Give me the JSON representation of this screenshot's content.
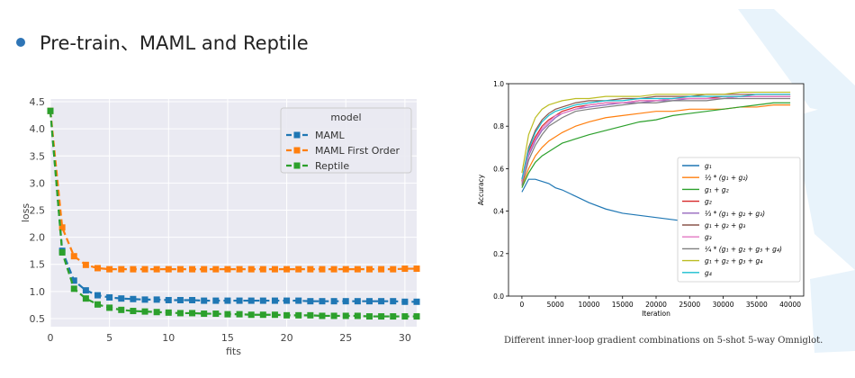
{
  "slide": {
    "bullet_text": "Pre-train、MAML and Reptile",
    "right_caption": "Different inner-loop gradient combinations on 5-shot 5-way Omniglot.",
    "colors": {
      "bullet": "#2e75b6",
      "decor": "#e8f3fb"
    }
  },
  "chart_data": [
    {
      "type": "line",
      "title": "",
      "xlabel": "fits",
      "ylabel": "loss",
      "xlim": [
        0,
        31
      ],
      "ylim": [
        0.35,
        4.55
      ],
      "xticks": [
        0,
        5,
        10,
        15,
        20,
        25,
        30
      ],
      "yticks": [
        0.5,
        1.0,
        1.5,
        2.0,
        2.5,
        3.0,
        3.5,
        4.0,
        4.5
      ],
      "grid": true,
      "legend_title": "model",
      "legend_position": "top-right",
      "x": [
        0,
        1,
        2,
        3,
        4,
        5,
        6,
        7,
        8,
        9,
        10,
        11,
        12,
        13,
        14,
        15,
        16,
        17,
        18,
        19,
        20,
        21,
        22,
        23,
        24,
        25,
        26,
        27,
        28,
        29,
        30,
        31
      ],
      "series": [
        {
          "name": "MAML",
          "color": "#1f77b4",
          "values": [
            4.33,
            1.75,
            1.2,
            1.02,
            0.93,
            0.89,
            0.87,
            0.86,
            0.85,
            0.85,
            0.84,
            0.84,
            0.84,
            0.83,
            0.83,
            0.83,
            0.83,
            0.83,
            0.83,
            0.83,
            0.83,
            0.83,
            0.82,
            0.82,
            0.82,
            0.82,
            0.82,
            0.82,
            0.82,
            0.82,
            0.81,
            0.81
          ]
        },
        {
          "name": "MAML First Order",
          "color": "#ff7f0e",
          "values": [
            4.33,
            2.18,
            1.65,
            1.49,
            1.43,
            1.41,
            1.41,
            1.41,
            1.41,
            1.41,
            1.41,
            1.41,
            1.41,
            1.41,
            1.41,
            1.41,
            1.41,
            1.41,
            1.41,
            1.41,
            1.41,
            1.41,
            1.41,
            1.41,
            1.41,
            1.41,
            1.41,
            1.41,
            1.41,
            1.41,
            1.42,
            1.42
          ]
        },
        {
          "name": "Reptile",
          "color": "#2ca02c",
          "values": [
            4.33,
            1.72,
            1.05,
            0.87,
            0.76,
            0.7,
            0.66,
            0.64,
            0.63,
            0.62,
            0.61,
            0.6,
            0.6,
            0.59,
            0.59,
            0.58,
            0.58,
            0.57,
            0.57,
            0.57,
            0.56,
            0.56,
            0.56,
            0.55,
            0.55,
            0.55,
            0.55,
            0.54,
            0.54,
            0.54,
            0.54,
            0.54
          ]
        }
      ]
    },
    {
      "type": "line",
      "title": "",
      "xlabel": "Iteration",
      "ylabel": "Accuracy",
      "xlim": [
        -2000,
        42000
      ],
      "ylim": [
        0.0,
        1.0
      ],
      "xticks": [
        0,
        5000,
        10000,
        15000,
        20000,
        25000,
        30000,
        35000,
        40000
      ],
      "yticks": [
        0.0,
        0.2,
        0.4,
        0.6,
        0.8,
        1.0
      ],
      "ytick_labels": [
        "0.0",
        "0.2",
        "0.4",
        "0.6",
        "0.8",
        "1.0"
      ],
      "grid": false,
      "legend_position": "lower-right",
      "x": [
        0,
        1000,
        2000,
        3000,
        4000,
        5000,
        6000,
        8000,
        10000,
        12500,
        15000,
        17500,
        20000,
        22500,
        25000,
        27500,
        30000,
        32500,
        35000,
        37500,
        40000
      ],
      "series": [
        {
          "name": "g1",
          "legend_text": "g₁",
          "color": "#1f77b4",
          "values": [
            0.49,
            0.55,
            0.55,
            0.54,
            0.53,
            0.51,
            0.5,
            0.47,
            0.44,
            0.41,
            0.39,
            0.38,
            0.37,
            0.36,
            0.35,
            0.35,
            0.34,
            0.34,
            0.34,
            0.33,
            0.33
          ]
        },
        {
          "name": "1/2*(g1+g2)",
          "legend_text": "½ * (g₁ + g₂)",
          "color": "#ff7f0e",
          "values": [
            0.52,
            0.6,
            0.66,
            0.7,
            0.73,
            0.75,
            0.77,
            0.8,
            0.82,
            0.84,
            0.85,
            0.86,
            0.87,
            0.87,
            0.88,
            0.88,
            0.88,
            0.89,
            0.89,
            0.9,
            0.9
          ]
        },
        {
          "name": "g1+g2",
          "legend_text": "g₁ + g₂",
          "color": "#2ca02c",
          "values": [
            0.51,
            0.58,
            0.63,
            0.66,
            0.68,
            0.7,
            0.72,
            0.74,
            0.76,
            0.78,
            0.8,
            0.82,
            0.83,
            0.85,
            0.86,
            0.87,
            0.88,
            0.89,
            0.9,
            0.91,
            0.91
          ]
        },
        {
          "name": "g2",
          "legend_text": "g₂",
          "color": "#d62728",
          "values": [
            0.54,
            0.68,
            0.75,
            0.8,
            0.83,
            0.85,
            0.87,
            0.89,
            0.9,
            0.91,
            0.91,
            0.92,
            0.92,
            0.93,
            0.93,
            0.93,
            0.94,
            0.94,
            0.94,
            0.94,
            0.94
          ]
        },
        {
          "name": "1/3*(g1+g2+g3)",
          "legend_text": "⅓ * (g₁ + g₂ + g₃)",
          "color": "#9467bd",
          "values": [
            0.53,
            0.66,
            0.73,
            0.78,
            0.81,
            0.84,
            0.86,
            0.88,
            0.89,
            0.9,
            0.91,
            0.91,
            0.92,
            0.92,
            0.93,
            0.93,
            0.93,
            0.94,
            0.94,
            0.94,
            0.94
          ]
        },
        {
          "name": "g1+g2+g3",
          "legend_text": "g₁ + g₂ + g₃",
          "color": "#8c564b",
          "values": [
            0.55,
            0.7,
            0.78,
            0.83,
            0.86,
            0.88,
            0.89,
            0.91,
            0.92,
            0.92,
            0.93,
            0.93,
            0.94,
            0.94,
            0.94,
            0.95,
            0.95,
            0.95,
            0.95,
            0.95,
            0.95
          ]
        },
        {
          "name": "g3",
          "legend_text": "g₃",
          "color": "#e377c2",
          "values": [
            0.53,
            0.67,
            0.74,
            0.79,
            0.82,
            0.85,
            0.86,
            0.88,
            0.9,
            0.91,
            0.91,
            0.92,
            0.92,
            0.93,
            0.93,
            0.93,
            0.93,
            0.94,
            0.94,
            0.94,
            0.94
          ]
        },
        {
          "name": "1/4*(g1+g2+g3+g4)",
          "legend_text": "¼ * (g₁ + g₂ + g₃ + g₄)",
          "color": "#7f7f7f",
          "values": [
            0.52,
            0.64,
            0.71,
            0.76,
            0.8,
            0.82,
            0.84,
            0.87,
            0.88,
            0.89,
            0.9,
            0.91,
            0.91,
            0.92,
            0.92,
            0.92,
            0.93,
            0.93,
            0.93,
            0.93,
            0.93
          ]
        },
        {
          "name": "g1+g2+g3+g4",
          "legend_text": "g₁ + g₂ + g₃ + g₄",
          "color": "#bcbd22",
          "values": [
            0.58,
            0.76,
            0.84,
            0.88,
            0.9,
            0.91,
            0.92,
            0.93,
            0.93,
            0.94,
            0.94,
            0.94,
            0.95,
            0.95,
            0.95,
            0.95,
            0.95,
            0.96,
            0.96,
            0.96,
            0.96
          ]
        },
        {
          "name": "g4",
          "legend_text": "g₄",
          "color": "#17becf",
          "values": [
            0.55,
            0.69,
            0.77,
            0.82,
            0.85,
            0.87,
            0.88,
            0.9,
            0.91,
            0.92,
            0.92,
            0.93,
            0.93,
            0.93,
            0.94,
            0.94,
            0.94,
            0.94,
            0.95,
            0.95,
            0.95
          ]
        }
      ]
    }
  ]
}
